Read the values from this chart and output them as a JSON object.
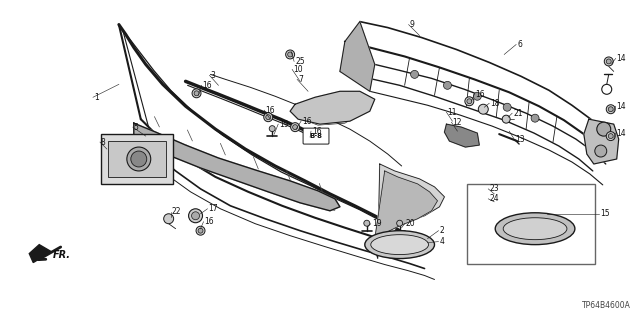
{
  "diagram_code": "TP64B4600A",
  "background_color": "#ffffff",
  "fig_width": 6.4,
  "fig_height": 3.19,
  "dpi": 100,
  "line_color": "#1a1a1a",
  "text_color": "#111111",
  "gray_fill": "#c8c8c8",
  "dark_fill": "#888888",
  "light_fill": "#e8e8e8"
}
